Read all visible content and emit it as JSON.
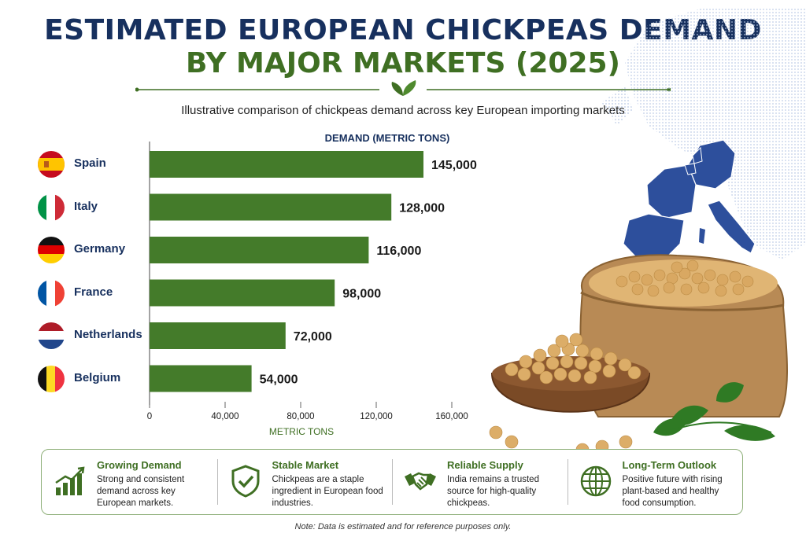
{
  "header": {
    "title_line1": "ESTIMATED EUROPEAN CHICKPEAS DEMAND",
    "title_line2": "BY MAJOR MARKETS (2025)",
    "subtitle": "Illustrative comparison of chickpeas demand across key European importing markets"
  },
  "chart_data": {
    "type": "bar",
    "orientation": "horizontal",
    "title": "DEMAND (METRIC TONS)",
    "xlabel": "METRIC TONS",
    "categories": [
      "Spain",
      "Italy",
      "Germany",
      "France",
      "Netherlands",
      "Belgium"
    ],
    "values": [
      145000,
      128000,
      116000,
      98000,
      72000,
      54000
    ],
    "value_labels": [
      "145,000",
      "128,000",
      "116,000",
      "98,000",
      "72,000",
      "54,000"
    ],
    "xlim": [
      0,
      160000
    ],
    "x_ticks": [
      0,
      40000,
      80000,
      120000,
      160000
    ],
    "x_tick_labels": [
      "0",
      "40,000",
      "80,000",
      "120,000",
      "160,000"
    ],
    "bar_color": "#447b2a",
    "grid": false,
    "legend": "none"
  },
  "flags": [
    {
      "country": "Spain",
      "icon": "spain-flag-icon"
    },
    {
      "country": "Italy",
      "icon": "italy-flag-icon"
    },
    {
      "country": "Germany",
      "icon": "germany-flag-icon"
    },
    {
      "country": "France",
      "icon": "france-flag-icon"
    },
    {
      "country": "Netherlands",
      "icon": "netherlands-flag-icon"
    },
    {
      "country": "Belgium",
      "icon": "belgium-flag-icon"
    }
  ],
  "features": [
    {
      "icon": "growth-chart-icon",
      "title": "Growing Demand",
      "text": "Strong and consistent demand across key European markets."
    },
    {
      "icon": "shield-check-icon",
      "title": "Stable Market",
      "text": "Chickpeas are a staple ingredient in European food industries."
    },
    {
      "icon": "handshake-icon",
      "title": "Reliable Supply",
      "text": "India remains a trusted source for high-quality chickpeas."
    },
    {
      "icon": "globe-icon",
      "title": "Long-Term Outlook",
      "text": "Positive future with rising plant-based and healthy food consumption."
    }
  ],
  "footer": {
    "note": "Note: Data is estimated and for reference purposes only."
  },
  "colors": {
    "navy": "#17305e",
    "green": "#3f6f23",
    "bar": "#447b2a",
    "map_highlight": "#2d4f9c"
  }
}
